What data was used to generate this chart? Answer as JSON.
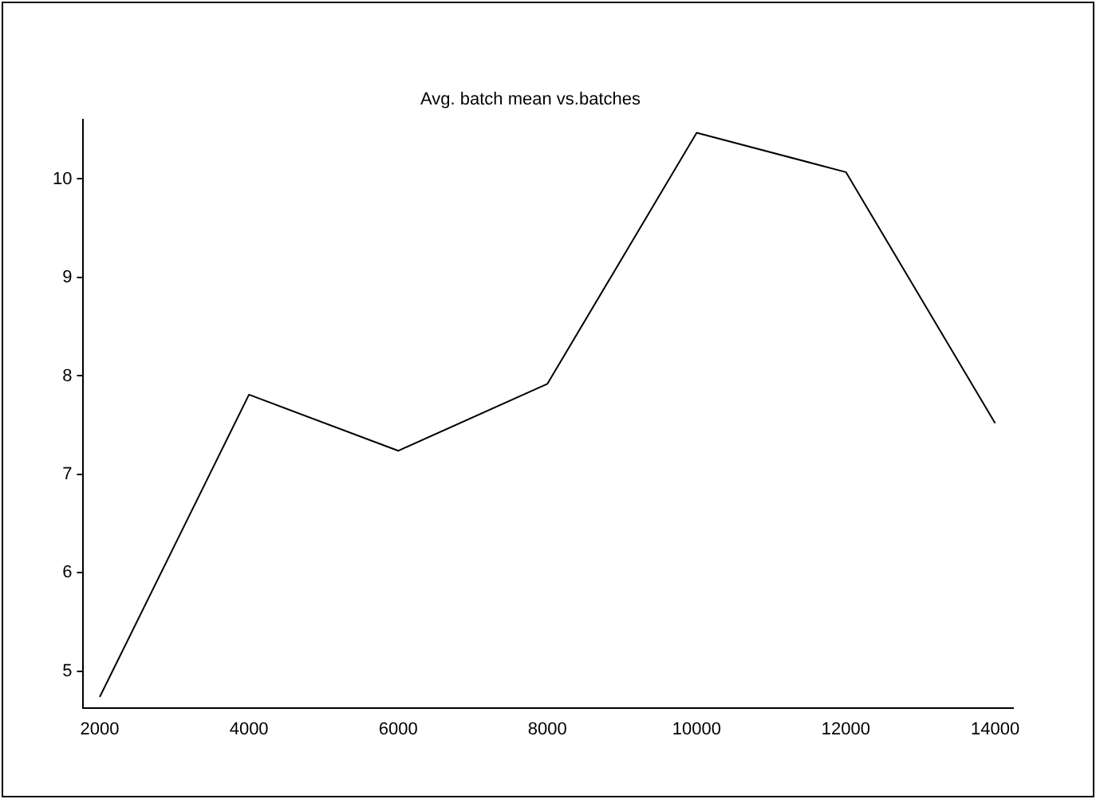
{
  "chart_data": {
    "type": "line",
    "title": "Avg. batch mean vs.batches",
    "x": [
      2000,
      4000,
      6000,
      8000,
      10000,
      12000,
      14000
    ],
    "series": [
      {
        "color": "#000000",
        "values": [
          4.74,
          7.81,
          7.24,
          7.92,
          10.47,
          10.07,
          7.52
        ]
      }
    ],
    "xlim": [
      1780,
      14240
    ],
    "xticks": [
      2000,
      4000,
      6000,
      8000,
      10000,
      12000,
      14000
    ],
    "ylim": [
      4.63,
      10.6
    ],
    "yticks": [
      5,
      6,
      7,
      8,
      9,
      10
    ],
    "grid": false,
    "legend": false,
    "marker": "none",
    "line_style": "solid"
  }
}
